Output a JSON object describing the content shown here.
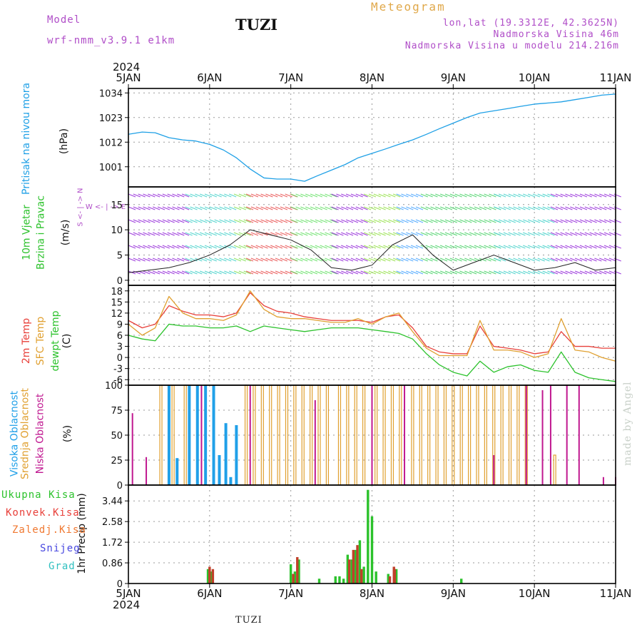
{
  "header": {
    "model_label": "Model",
    "model_name": "wrf-nmm_v3.9.1 e1km",
    "station": "TUZI",
    "meteogram": "Meteogram",
    "lonlat": "lon,lat (19.3312E, 42.3625N)",
    "altitude": "Nadmorska Visina 46m",
    "model_altitude": "Nadmorska Visina u modelu 214.216m"
  },
  "footer": {
    "station": "TUZI",
    "watermark": "made by Angel"
  },
  "time_axis": {
    "year": "2024",
    "labels": [
      "5JAN",
      "6JAN",
      "7JAN",
      "8JAN",
      "9JAN",
      "10JAN",
      "11JAN"
    ]
  },
  "colors": {
    "pressure": "#1fa0e6",
    "temp2m": "#e8403a",
    "sfc": "#e0a030",
    "dewpt": "#2cc22c",
    "low": "#c01890",
    "mid": "#e0a030",
    "high": "#20a0e8",
    "total": "#2cc22c",
    "conv": "#c0402a",
    "wind_calm": "#9020d8"
  },
  "panel_labels": {
    "pressure": [
      "Pritisak na nivou mora",
      "(hPa)"
    ],
    "wind": [
      "10m Vjetar",
      "Brzina i Pravac",
      "(m/s)"
    ],
    "compass": "W <- | -> E",
    "compass_ns": "S <- | -> N",
    "temp": [
      "2m Temp",
      "SFC Temp",
      "dewpt Temp",
      "(C)"
    ],
    "cloud": [
      "Visoka Oblacnost",
      "Srednja Oblacnost",
      "Niska Oblacnost",
      "(%)"
    ],
    "precip_ylabel": "1hr Precip (mm)",
    "precip_legend": [
      "Ukupna Kisa",
      "Konvek.Kisa",
      "Zaledj.Kisa",
      "Snijeg",
      "Grad"
    ],
    "precip_legend_colors": [
      "#2cc22c",
      "#e8403a",
      "#f07830",
      "#4848e0",
      "#30c0c0"
    ]
  },
  "chart_data": [
    {
      "type": "line",
      "id": "pressure",
      "ylabel": "(hPa)",
      "yticks": [
        1001,
        1012,
        1023,
        1034
      ],
      "ylim": [
        992,
        1036
      ],
      "x_days": [
        0,
        0.17,
        0.33,
        0.5,
        0.67,
        0.83,
        1.0,
        1.17,
        1.33,
        1.5,
        1.67,
        1.83,
        2.0,
        2.17,
        2.33,
        2.5,
        2.67,
        2.83,
        3.0,
        3.17,
        3.33,
        3.5,
        3.67,
        3.83,
        4.0,
        4.17,
        4.33,
        4.5,
        4.67,
        4.83,
        5.0,
        5.17,
        5.33,
        5.5,
        5.67,
        5.83,
        6.0
      ],
      "series": [
        {
          "values": [
            1015.5,
            1016.5,
            1016.2,
            1014,
            1013,
            1012.5,
            1011,
            1008.5,
            1005,
            1000,
            996,
            995.5,
            995.5,
            994.5,
            997,
            999.5,
            1002,
            1005,
            1007,
            1009,
            1011,
            1013,
            1015.5,
            1018,
            1020.5,
            1023,
            1025,
            1026,
            1027,
            1028,
            1029,
            1029.5,
            1030,
            1031,
            1032,
            1033,
            1033.5
          ]
        }
      ]
    },
    {
      "type": "line",
      "id": "wind",
      "ylabel": "(m/s)",
      "yticks": [
        0,
        5,
        10,
        15
      ],
      "ylim": [
        -1,
        18.5
      ],
      "x_days": [
        0,
        0.25,
        0.5,
        0.75,
        1.0,
        1.25,
        1.5,
        1.75,
        2.0,
        2.25,
        2.5,
        2.75,
        3.0,
        3.25,
        3.5,
        3.75,
        4.0,
        4.25,
        4.5,
        4.75,
        5.0,
        5.25,
        5.5,
        5.75,
        6.0
      ],
      "series": [
        {
          "values": [
            1.5,
            2,
            2.5,
            3.5,
            5,
            7,
            10,
            9,
            8,
            6,
            2.5,
            2,
            3,
            7,
            9,
            5,
            2,
            3.5,
            5,
            3.5,
            2,
            2.5,
            3.5,
            2,
            2.5
          ]
        }
      ]
    },
    {
      "type": "line",
      "id": "temperature",
      "ylabel": "(C)",
      "yticks": [
        -6,
        -3,
        0,
        3,
        6,
        9,
        12,
        15,
        18
      ],
      "ylim": [
        -7.5,
        19.5
      ],
      "x_days": [
        0,
        0.17,
        0.33,
        0.5,
        0.67,
        0.83,
        1.0,
        1.17,
        1.33,
        1.5,
        1.67,
        1.83,
        2.0,
        2.17,
        2.33,
        2.5,
        2.67,
        2.83,
        3.0,
        3.17,
        3.33,
        3.5,
        3.67,
        3.83,
        4.0,
        4.17,
        4.33,
        4.5,
        4.67,
        4.83,
        5.0,
        5.17,
        5.33,
        5.5,
        5.67,
        5.83,
        6.0
      ],
      "series": [
        {
          "name": "2m Temp",
          "values": [
            10,
            8,
            9,
            14,
            12.5,
            11.5,
            11.5,
            11,
            12,
            17.5,
            14,
            12.5,
            12,
            11,
            10.5,
            10,
            10,
            10,
            9.5,
            11,
            11.5,
            8,
            3,
            1.5,
            1,
            1,
            8.5,
            3,
            2.5,
            2,
            1,
            1.5,
            7,
            3,
            3,
            2.5,
            2.5
          ]
        },
        {
          "name": "SFC Temp",
          "values": [
            9,
            6,
            8,
            16.5,
            12,
            10.5,
            10.5,
            10,
            11.5,
            18,
            13,
            11,
            10.5,
            10.5,
            10,
            9.5,
            9.5,
            10.5,
            9,
            11,
            12,
            7,
            2.5,
            0.5,
            0.5,
            0.5,
            10,
            2,
            2,
            1.5,
            0,
            1,
            10.5,
            2,
            1.5,
            0,
            -1
          ]
        },
        {
          "name": "dewpt Temp",
          "values": [
            6,
            5,
            4.5,
            9,
            8.5,
            8.5,
            8,
            8,
            8.5,
            7,
            8.5,
            8,
            7.5,
            7,
            7.5,
            8,
            8,
            8,
            7.5,
            7,
            6.5,
            5,
            1,
            -2,
            -4,
            -5,
            -1,
            -4,
            -2.5,
            -2,
            -3.5,
            -4,
            1.5,
            -4,
            -5.5,
            -6,
            -6.5
          ]
        }
      ]
    },
    {
      "type": "bar",
      "id": "cloud",
      "ylabel": "(%)",
      "yticks": [
        0,
        25,
        50,
        75,
        100
      ],
      "ylim": [
        0,
        100
      ],
      "series": [
        {
          "name": "Visoka Oblacnost",
          "x_days": [
            0.5,
            0.6,
            0.75,
            0.85,
            0.95,
            1.05,
            1.12,
            1.2,
            1.26,
            1.33
          ],
          "values": [
            100,
            27,
            100,
            100,
            100,
            100,
            30,
            62,
            8,
            60
          ]
        },
        {
          "name": "Srednja Oblacnost",
          "x_days": [
            0.4,
            0.55,
            0.7,
            1.45,
            1.55,
            1.65,
            1.75,
            1.85,
            1.95,
            2.05,
            2.15,
            2.25,
            2.35,
            2.45,
            2.6,
            2.7,
            2.8,
            2.9,
            3.05,
            3.15,
            3.25,
            3.35,
            3.5,
            3.6,
            3.7,
            3.8,
            3.9,
            4.0,
            4.1,
            4.2,
            4.3,
            4.4,
            4.5,
            4.6,
            4.7,
            4.8,
            4.9,
            5.25
          ],
          "values": [
            100,
            100,
            100,
            100,
            100,
            100,
            100,
            100,
            100,
            100,
            100,
            100,
            100,
            100,
            100,
            100,
            100,
            100,
            100,
            100,
            100,
            100,
            100,
            100,
            100,
            100,
            100,
            100,
            100,
            100,
            100,
            100,
            100,
            100,
            100,
            100,
            100,
            30
          ]
        },
        {
          "name": "Niska Oblacnost",
          "x_days": [
            0.05,
            0.22,
            0.9,
            1.5,
            2.3,
            3.0,
            3.4,
            4.5,
            4.9,
            5.1,
            5.2,
            5.4,
            5.55,
            5.85,
            6.0
          ],
          "values": [
            72,
            28,
            100,
            100,
            85,
            100,
            100,
            30,
            100,
            95,
            100,
            100,
            100,
            8,
            8
          ]
        }
      ]
    },
    {
      "type": "bar",
      "id": "precip",
      "ylabel": "1hr Precip (mm)",
      "yticks": [
        0,
        0.86,
        1.72,
        2.58,
        3.44
      ],
      "ylim": [
        0,
        4.1
      ],
      "series": [
        {
          "name": "Ukupna Kisa",
          "x_days": [
            0.98,
            1.02,
            2.0,
            2.05,
            2.1,
            2.35,
            2.55,
            2.6,
            2.65,
            2.7,
            2.75,
            2.8,
            2.85,
            2.9,
            2.95,
            3.0,
            3.05,
            3.2,
            3.3,
            4.1
          ],
          "values": [
            0.6,
            0.5,
            0.8,
            0.5,
            1.0,
            0.2,
            0.3,
            0.3,
            0.2,
            1.2,
            1.0,
            1.4,
            1.8,
            0.7,
            3.9,
            2.8,
            0.5,
            0.4,
            0.6,
            0.2
          ]
        },
        {
          "name": "Konvek.Kisa",
          "x_days": [
            1.0,
            1.04,
            2.03,
            2.08,
            2.72,
            2.77,
            2.82,
            2.87,
            3.22,
            3.27,
            3.28
          ],
          "values": [
            0.7,
            0.6,
            0.4,
            1.1,
            1.0,
            1.4,
            1.6,
            0.6,
            0.3,
            0.7,
            0.6
          ]
        }
      ]
    }
  ]
}
